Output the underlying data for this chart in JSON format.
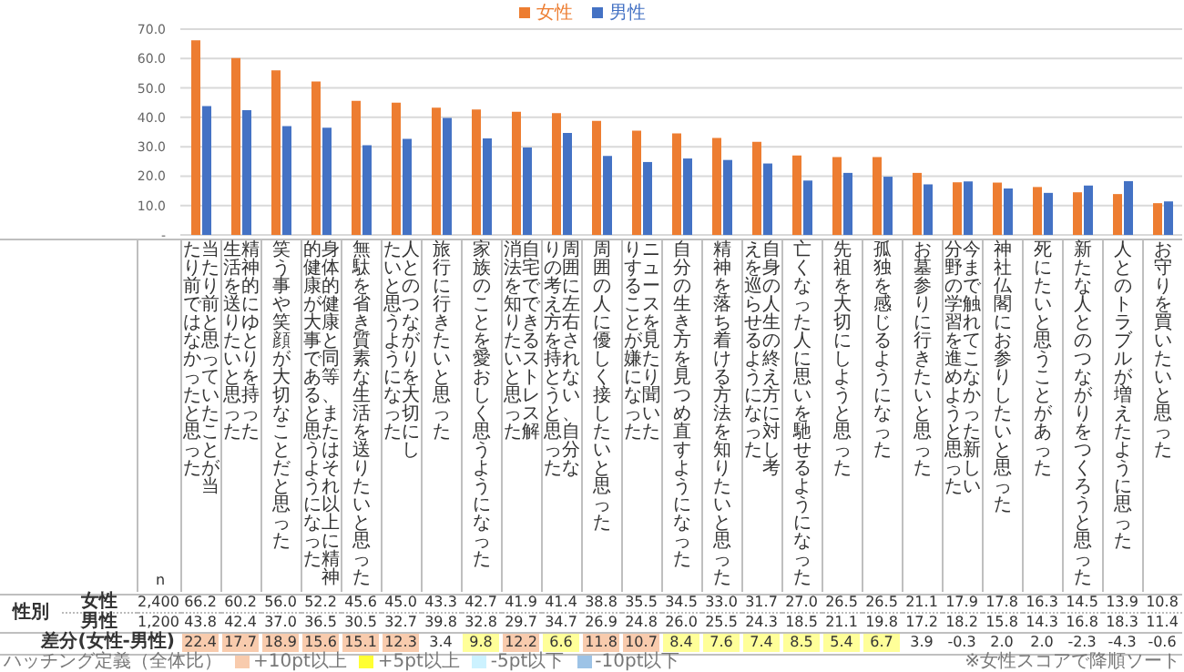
{
  "chart_data": {
    "type": "bar",
    "categories": [
      "当たり前と思っていたことが当たり前ではなかったと思った",
      "精神的にゆとりを持った生活を送りたいと思った",
      "笑う事や笑顔が大切なことだと思った",
      "身体的健康と同等、またはそれ以上に精神的健康が大事であると思うようになった",
      "無駄を省き質素な生活を送りたいと思った",
      "人とのつながりを大切にしたいと思うようになった",
      "旅行に行きたいと思った",
      "家族のことを愛おしく思うようになった",
      "自宅でできるストレス解消法を知りたいと思った",
      "周囲に左右されない、自分なりの考え方を持とうと思った",
      "周囲の人に優しく接したいと思った",
      "ニュースを見たり聞いたりすることが嫌になった",
      "自分の生き方を見つめ直すようになった",
      "精神を落ち着ける方法を知りたいと思った",
      "自身の人生の終え方に対し考えを巡らせるようになった",
      "亡くなった人に思いを馳せるようになった",
      "先祖を大切にしようと思った",
      "孤独を感じるようになった",
      "お墓参りに行きたいと思った",
      "今まで触れてこなかった新しい分野の学習を進めようと思った",
      "神社仏閣にお参りしたいと思った",
      "死にたいと思うことがあった",
      "新たな人とのつながりをつくろうと思った",
      "人とのトラブルが増えたように思った",
      "お守りを買いたいと思った"
    ],
    "series": [
      {
        "name": "女性",
        "color": "#ed7d31",
        "values": [
          66.2,
          60.2,
          56.0,
          52.2,
          45.6,
          45.0,
          43.3,
          42.7,
          41.9,
          41.4,
          38.8,
          35.5,
          34.5,
          33.0,
          31.7,
          27.0,
          26.5,
          26.5,
          21.1,
          17.9,
          17.8,
          16.3,
          14.5,
          13.9,
          10.8
        ],
        "value_labels": [
          "66.2",
          "60.2",
          "56.0",
          "52.2",
          "45.6",
          "45.0",
          "43.3",
          "42.7",
          "41.9",
          "41.4",
          "38.8",
          "35.5",
          "34.5",
          "33.0",
          "31.7",
          "27.0",
          "26.5",
          "26.5",
          "21.1",
          "17.9",
          "17.8",
          "16.3",
          "14.5",
          "13.9",
          "10.8"
        ]
      },
      {
        "name": "男性",
        "color": "#4472c4",
        "values": [
          43.8,
          42.4,
          37.0,
          36.5,
          30.5,
          32.7,
          39.8,
          32.8,
          29.7,
          34.7,
          26.9,
          24.8,
          26.0,
          25.5,
          24.3,
          18.5,
          21.1,
          19.8,
          17.2,
          18.2,
          15.8,
          14.3,
          16.8,
          18.3,
          11.4
        ],
        "value_labels": [
          "43.8",
          "42.4",
          "37.0",
          "36.5",
          "30.5",
          "32.7",
          "39.8",
          "32.8",
          "29.7",
          "34.7",
          "26.9",
          "24.8",
          "26.0",
          "25.5",
          "24.3",
          "18.5",
          "21.1",
          "19.8",
          "17.2",
          "18.2",
          "15.8",
          "14.3",
          "16.8",
          "18.3",
          "11.4"
        ]
      }
    ],
    "ylim": [
      0,
      70
    ],
    "yticks": [
      {
        "value": 0,
        "label": "-"
      },
      {
        "value": 10,
        "label": "10.0"
      },
      {
        "value": 20,
        "label": "20.0"
      },
      {
        "value": 30,
        "label": "30.0"
      },
      {
        "value": 40,
        "label": "40.0"
      },
      {
        "value": 50,
        "label": "50.0"
      },
      {
        "value": 60,
        "label": "60.0"
      },
      {
        "value": 70,
        "label": "70.0"
      }
    ],
    "grid": "y",
    "legend": "top",
    "tick_labels": "y",
    "annotations": [
      "n",
      "性別",
      "2,400",
      "1,200",
      "差分(女性-男性)",
      "22.4",
      "17.7",
      "18.9",
      "15.6",
      "15.1",
      "12.3",
      "3.4",
      "9.8",
      "12.2",
      "6.6",
      "11.8",
      "10.7",
      "8.4",
      "7.6",
      "7.4",
      "8.5",
      "5.4",
      "6.7",
      "3.9",
      "-0.3",
      "2.0",
      "2.0",
      "-2.3",
      "-4.3",
      "-0.6",
      "ハッチング定義（全体比）",
      "+10pt以上",
      "+5pt以上",
      "-5pt以下",
      "-10pt以下",
      "※女性スコアで降順ソート"
    ]
  }
}
